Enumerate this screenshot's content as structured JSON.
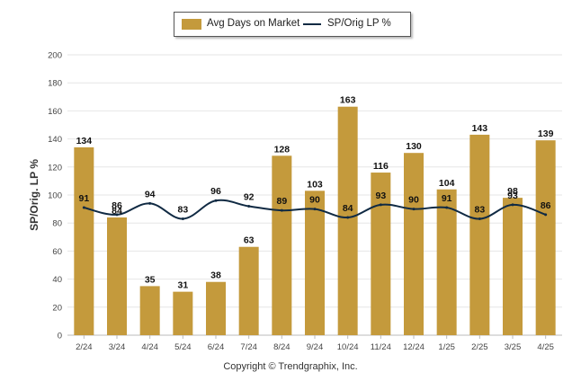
{
  "legend": {
    "bar_label": "Avg Days on Market",
    "line_label": "SP/Orig LP %"
  },
  "footer": "Copyright © Trendgraphix, Inc.",
  "colors": {
    "bar": "#c49a3c",
    "line": "#102a43",
    "grid": "#e6e6e6"
  },
  "chart_data": {
    "type": "bar",
    "title": "",
    "ylabel": "SP/Orig. LP %",
    "ylim": [
      0,
      200
    ],
    "yticks": [
      0,
      20,
      40,
      60,
      80,
      100,
      120,
      140,
      160,
      180,
      200
    ],
    "categories": [
      "2/24",
      "3/24",
      "4/24",
      "5/24",
      "6/24",
      "7/24",
      "8/24",
      "9/24",
      "10/24",
      "11/24",
      "12/24",
      "1/25",
      "2/25",
      "3/25",
      "4/25"
    ],
    "series": [
      {
        "name": "Avg Days on Market",
        "kind": "bar",
        "values": [
          134,
          84,
          35,
          31,
          38,
          63,
          128,
          103,
          163,
          116,
          130,
          104,
          143,
          98,
          139
        ]
      },
      {
        "name": "SP/Orig LP %",
        "kind": "line",
        "values": [
          91,
          86,
          94,
          83,
          96,
          92,
          89,
          90,
          84,
          93,
          90,
          91,
          83,
          93,
          86
        ]
      }
    ],
    "grid": true,
    "legend_position": "top-center"
  }
}
